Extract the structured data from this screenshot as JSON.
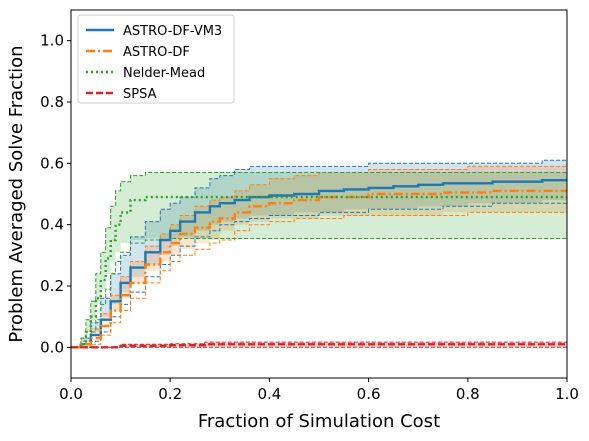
{
  "chart_data": {
    "type": "line",
    "xlabel": "Fraction of Simulation Cost",
    "ylabel": "Problem Averaged Solve Fraction",
    "xlim": [
      0.0,
      1.0
    ],
    "ylim": [
      -0.1,
      1.1
    ],
    "xticks": [
      "0.0",
      "0.2",
      "0.4",
      "0.6",
      "0.8",
      "1.0"
    ],
    "yticks": [
      "0.0",
      "0.2",
      "0.4",
      "0.6",
      "0.8",
      "1.0"
    ],
    "xtick_values": [
      0.0,
      0.2,
      0.4,
      0.6,
      0.8,
      1.0
    ],
    "ytick_values": [
      0.0,
      0.2,
      0.4,
      0.6,
      0.8,
      1.0
    ],
    "grid": false,
    "legend_position": "top-left",
    "series": [
      {
        "name": "ASTRO-DF-VM3",
        "color": "#1f77b4",
        "linestyle": "solid",
        "x": [
          0.0,
          0.02,
          0.04,
          0.06,
          0.08,
          0.1,
          0.12,
          0.15,
          0.18,
          0.2,
          0.22,
          0.25,
          0.28,
          0.3,
          0.33,
          0.36,
          0.4,
          0.45,
          0.5,
          0.55,
          0.6,
          0.65,
          0.7,
          0.75,
          0.8,
          0.85,
          0.9,
          0.95,
          1.0
        ],
        "y": [
          0.0,
          0.01,
          0.04,
          0.09,
          0.15,
          0.21,
          0.26,
          0.31,
          0.35,
          0.38,
          0.41,
          0.44,
          0.46,
          0.47,
          0.48,
          0.49,
          0.495,
          0.5,
          0.51,
          0.515,
          0.52,
          0.525,
          0.53,
          0.535,
          0.535,
          0.54,
          0.54,
          0.545,
          0.545
        ],
        "lower": [
          0.0,
          0.0,
          0.02,
          0.05,
          0.1,
          0.14,
          0.18,
          0.23,
          0.27,
          0.3,
          0.33,
          0.36,
          0.38,
          0.4,
          0.41,
          0.42,
          0.43,
          0.43,
          0.44,
          0.44,
          0.45,
          0.45,
          0.45,
          0.46,
          0.46,
          0.47,
          0.47,
          0.47,
          0.48
        ],
        "upper": [
          0.0,
          0.03,
          0.08,
          0.16,
          0.24,
          0.3,
          0.36,
          0.41,
          0.45,
          0.47,
          0.49,
          0.52,
          0.55,
          0.56,
          0.58,
          0.59,
          0.59,
          0.59,
          0.59,
          0.59,
          0.6,
          0.6,
          0.6,
          0.6,
          0.6,
          0.6,
          0.6,
          0.61,
          0.61
        ]
      },
      {
        "name": "ASTRO-DF",
        "color": "#ff7f0e",
        "linestyle": "dashdot",
        "x": [
          0.0,
          0.02,
          0.04,
          0.06,
          0.08,
          0.1,
          0.12,
          0.15,
          0.18,
          0.2,
          0.22,
          0.25,
          0.28,
          0.3,
          0.33,
          0.36,
          0.4,
          0.45,
          0.5,
          0.55,
          0.6,
          0.65,
          0.7,
          0.75,
          0.8,
          0.85,
          0.9,
          0.95,
          1.0
        ],
        "y": [
          0.0,
          0.01,
          0.03,
          0.07,
          0.12,
          0.17,
          0.21,
          0.27,
          0.31,
          0.34,
          0.37,
          0.39,
          0.41,
          0.42,
          0.44,
          0.46,
          0.47,
          0.48,
          0.49,
          0.49,
          0.5,
          0.5,
          0.5,
          0.505,
          0.505,
          0.51,
          0.51,
          0.51,
          0.51
        ],
        "lower": [
          0.0,
          0.0,
          0.01,
          0.04,
          0.08,
          0.12,
          0.16,
          0.21,
          0.25,
          0.28,
          0.3,
          0.32,
          0.34,
          0.35,
          0.38,
          0.4,
          0.41,
          0.42,
          0.42,
          0.43,
          0.43,
          0.43,
          0.43,
          0.43,
          0.44,
          0.44,
          0.44,
          0.44,
          0.44
        ],
        "upper": [
          0.0,
          0.02,
          0.06,
          0.11,
          0.17,
          0.23,
          0.28,
          0.33,
          0.37,
          0.4,
          0.43,
          0.46,
          0.48,
          0.49,
          0.51,
          0.53,
          0.55,
          0.56,
          0.57,
          0.57,
          0.58,
          0.58,
          0.58,
          0.58,
          0.59,
          0.59,
          0.59,
          0.59,
          0.59
        ]
      },
      {
        "name": "Nelder-Mead",
        "color": "#2ca02c",
        "linestyle": "dotted",
        "x": [
          0.0,
          0.02,
          0.03,
          0.04,
          0.05,
          0.06,
          0.07,
          0.08,
          0.09,
          0.1,
          0.12,
          0.15,
          0.2,
          0.3,
          0.4,
          0.6,
          0.8,
          1.0
        ],
        "y": [
          0.0,
          0.01,
          0.05,
          0.1,
          0.16,
          0.22,
          0.29,
          0.35,
          0.4,
          0.44,
          0.48,
          0.49,
          0.49,
          0.49,
          0.49,
          0.49,
          0.49,
          0.49
        ],
        "lower": [
          0.0,
          0.0,
          0.02,
          0.05,
          0.09,
          0.14,
          0.19,
          0.24,
          0.28,
          0.31,
          0.34,
          0.35,
          0.355,
          0.355,
          0.355,
          0.355,
          0.355,
          0.355
        ],
        "upper": [
          0.0,
          0.03,
          0.09,
          0.15,
          0.24,
          0.31,
          0.39,
          0.46,
          0.51,
          0.54,
          0.56,
          0.57,
          0.57,
          0.57,
          0.57,
          0.57,
          0.57,
          0.57
        ]
      },
      {
        "name": "SPSA",
        "color": "#d62728",
        "linestyle": "dashed",
        "x": [
          0.0,
          0.1,
          0.2,
          0.27,
          0.4,
          0.6,
          0.8,
          1.0
        ],
        "y": [
          0.0,
          0.005,
          0.007,
          0.01,
          0.01,
          0.01,
          0.01,
          0.01
        ],
        "lower": [
          0.0,
          0.0,
          0.0,
          0.0,
          0.0,
          0.0,
          0.0,
          0.0
        ],
        "upper": [
          0.0,
          0.01,
          0.012,
          0.017,
          0.017,
          0.017,
          0.017,
          0.017
        ]
      }
    ]
  }
}
